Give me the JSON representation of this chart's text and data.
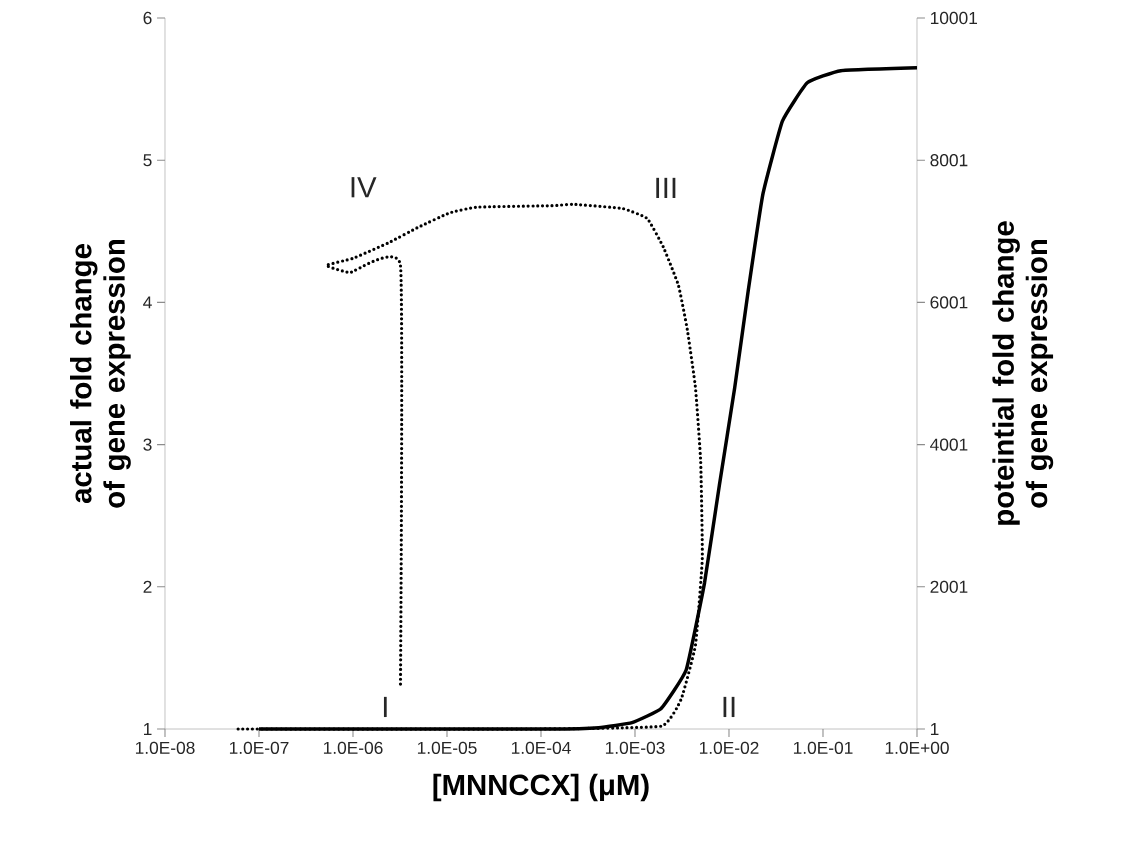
{
  "chart_data": {
    "type": "line",
    "xlabel": "[MNNCCX] (μM)",
    "ylabel": "actual fold change of gene expression",
    "y2label": "poteintial fold change of gene expression",
    "log": "x",
    "marker": "none",
    "xlim": [
      1e-08,
      1
    ],
    "xticks": [
      {
        "value": 1e-08,
        "label": "1.0E-08"
      },
      {
        "value": 1e-07,
        "label": "1.0E-07"
      },
      {
        "value": 1e-06,
        "label": "1.0E-06"
      },
      {
        "value": 1e-05,
        "label": "1.0E-05"
      },
      {
        "value": 0.0001,
        "label": "1.0E-04"
      },
      {
        "value": 0.001,
        "label": "1.0E-03"
      },
      {
        "value": 0.01,
        "label": "1.0E-02"
      },
      {
        "value": 0.1,
        "label": "1.0E-01"
      },
      {
        "value": 1,
        "label": "1.0E+00"
      }
    ],
    "ylim": [
      1,
      6
    ],
    "yticks": [
      1,
      2,
      3,
      4,
      5,
      6
    ],
    "y2lim": [
      1,
      10001
    ],
    "y2ticks": [
      1,
      2001,
      4001,
      6001,
      8001,
      10001
    ],
    "series": [
      {
        "color": "#000000",
        "line_style": "dotted",
        "x": [
          6e-08,
          0.0001,
          0.0019,
          0.0031,
          0.0044,
          0.0052,
          0.005,
          0.0044,
          0.0036,
          0.0029,
          0.002,
          0.00135,
          0.00074,
          0.00022,
          0.00013,
          2.1e-05,
          1.07e-05,
          5e-06,
          2.4e-06,
          1e-06,
          5.2e-07,
          9.3e-07,
          3.2e-06,
          3.2e-06
        ],
        "values": [
          1,
          1,
          1.02,
          1.21,
          1.59,
          2.2,
          2.88,
          3.4,
          3.81,
          4.12,
          4.39,
          4.59,
          4.66,
          4.69,
          4.68,
          4.67,
          4.63,
          4.53,
          4.42,
          4.31,
          4.26,
          4.21,
          4.26,
          1.3
        ]
      },
      {
        "color": "#000000",
        "line_style": "solid",
        "axis": "y2",
        "x": [
          1e-07,
          0.00013,
          0.00041,
          0.00093,
          0.0019,
          0.0035,
          0.0055,
          0.0079,
          0.0115,
          0.016,
          0.023,
          0.037,
          0.068,
          0.155,
          1
        ],
        "values": [
          1,
          1,
          20,
          90,
          290,
          830,
          2060,
          3430,
          4800,
          6160,
          7530,
          8550,
          9090,
          9260,
          9300
        ]
      }
    ],
    "annotations": [
      "I",
      "II",
      "III",
      "IV"
    ]
  }
}
